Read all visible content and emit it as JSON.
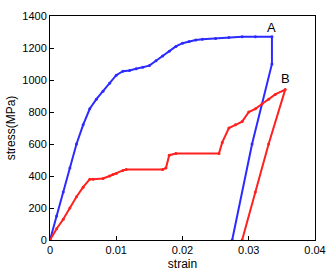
{
  "chart_data": {
    "type": "line",
    "x_label": "strain",
    "y_label": "stress(MPa)",
    "xlim": [
      0,
      0.04
    ],
    "xticks": [
      0,
      0.01,
      0.02,
      0.03,
      0.04
    ],
    "ylim": [
      0,
      1400
    ],
    "yticks": [
      0,
      200,
      400,
      600,
      800,
      1000,
      1200,
      1400
    ],
    "grid": false,
    "series": [
      {
        "name": "A",
        "color": "#2b2bff",
        "x": [
          0,
          0.001,
          0.002,
          0.003,
          0.004,
          0.005,
          0.006,
          0.007,
          0.008,
          0.009,
          0.01,
          0.011,
          0.012,
          0.013,
          0.014,
          0.015,
          0.016,
          0.017,
          0.018,
          0.019,
          0.02,
          0.021,
          0.022,
          0.023,
          0.025,
          0.027,
          0.029,
          0.031,
          0.0335,
          0.0335,
          0.0305,
          0.0275
        ],
        "values": [
          0,
          150,
          300,
          450,
          600,
          720,
          820,
          880,
          930,
          980,
          1030,
          1055,
          1060,
          1070,
          1080,
          1090,
          1120,
          1150,
          1180,
          1210,
          1230,
          1240,
          1250,
          1255,
          1260,
          1265,
          1270,
          1270,
          1270,
          1100,
          600,
          0
        ]
      },
      {
        "name": "B",
        "color": "#ff2020",
        "x": [
          0,
          0.001,
          0.002,
          0.003,
          0.004,
          0.005,
          0.006,
          0.0065,
          0.008,
          0.009,
          0.0095,
          0.01,
          0.011,
          0.0115,
          0.017,
          0.0175,
          0.018,
          0.019,
          0.0255,
          0.026,
          0.027,
          0.028,
          0.029,
          0.03,
          0.031,
          0.032,
          0.033,
          0.034,
          0.0355,
          0.033,
          0.031,
          0.029
        ],
        "values": [
          0,
          70,
          130,
          200,
          270,
          330,
          380,
          380,
          385,
          400,
          410,
          415,
          435,
          440,
          440,
          450,
          530,
          540,
          540,
          610,
          700,
          720,
          740,
          800,
          820,
          850,
          880,
          910,
          940,
          600,
          300,
          0
        ]
      }
    ],
    "annotations": [
      {
        "text": "A",
        "x": 0.0335,
        "y": 1330
      },
      {
        "text": "B",
        "x": 0.0355,
        "y": 1010
      }
    ]
  }
}
